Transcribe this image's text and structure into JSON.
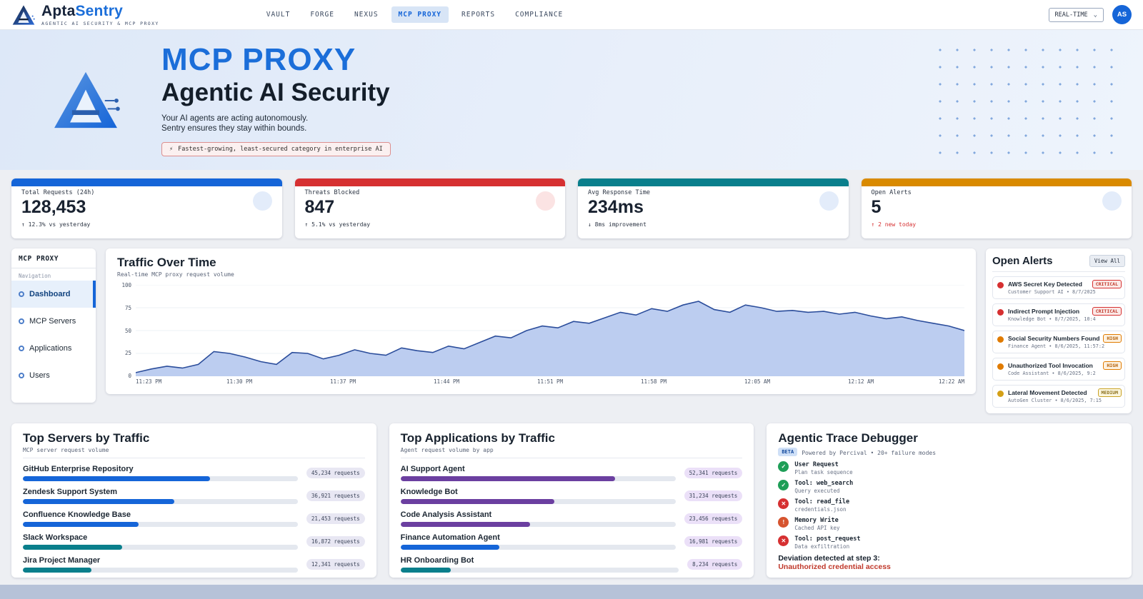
{
  "brand": {
    "name_primary": "Apta",
    "name_accent": "Sentry",
    "tagline": "AGENTIC AI SECURITY & MCP PROXY"
  },
  "nav": {
    "items": [
      {
        "label": "VAULT",
        "active": false
      },
      {
        "label": "FORGE",
        "active": false
      },
      {
        "label": "NEXUS",
        "active": false
      },
      {
        "label": "MCP PROXY",
        "active": true
      },
      {
        "label": "REPORTS",
        "active": false
      },
      {
        "label": "COMPLIANCE",
        "active": false
      }
    ],
    "realtime_label": "REAL-TIME",
    "avatar_initials": "AS"
  },
  "hero": {
    "title": "MCP PROXY",
    "subtitle": "Agentic AI Security",
    "line1": "Your AI agents are acting autonomously.",
    "line2": "Sentry ensures they stay within bounds.",
    "badge_icon": "⚡",
    "badge_text": "Fastest-growing, least-secured category in enterprise AI"
  },
  "stats": [
    {
      "label": "Total Requests (24h)",
      "value": "128,453",
      "delta": "↑ 12.3% vs yesterday",
      "accent": "#1565d8",
      "tint": "#e3ecfa",
      "delta_color": "#2a3342"
    },
    {
      "label": "Threats Blocked",
      "value": "847",
      "delta": "↑ 5.1% vs yesterday",
      "accent": "#d63031",
      "tint": "#fbe3e3",
      "delta_color": "#2a3342"
    },
    {
      "label": "Avg Response Time",
      "value": "234ms",
      "delta": "↓ 8ms improvement",
      "accent": "#0a7f8c",
      "tint": "#e3ecfa",
      "delta_color": "#2a3342"
    },
    {
      "label": "Open Alerts",
      "value": "5",
      "delta": "↑ 2 new today",
      "accent": "#d98a00",
      "tint": "#e3ecfa",
      "delta_color": "#d63031"
    }
  ],
  "sidebar": {
    "title": "MCP PROXY",
    "section": "Navigation",
    "items": [
      {
        "label": "Dashboard",
        "active": true
      },
      {
        "label": "MCP Servers",
        "active": false
      },
      {
        "label": "Applications",
        "active": false
      },
      {
        "label": "Users",
        "active": false
      }
    ]
  },
  "chart_data": {
    "type": "area",
    "title": "Traffic Over Time",
    "subtitle": "Real-time MCP proxy request volume",
    "x_ticks": [
      "11:23 PM",
      "11:30 PM",
      "11:37 PM",
      "11:44 PM",
      "11:51 PM",
      "11:58 PM",
      "12:05 AM",
      "12:12 AM",
      "12:22 AM"
    ],
    "y_ticks": [
      0,
      25,
      50,
      75,
      100
    ],
    "ylim": [
      0,
      100
    ],
    "values": [
      4,
      8,
      11,
      9,
      13,
      27,
      25,
      21,
      16,
      13,
      26,
      25,
      19,
      23,
      29,
      25,
      23,
      31,
      28,
      26,
      33,
      30,
      37,
      44,
      42,
      50,
      55,
      53,
      60,
      58,
      64,
      70,
      67,
      74,
      71,
      78,
      82,
      73,
      70,
      78,
      75,
      71,
      72,
      70,
      71,
      68,
      70,
      66,
      63,
      65,
      61,
      58,
      55,
      50
    ],
    "line_color": "#2b4d9b",
    "fill_color": "#bccdf0",
    "grid": true,
    "legend": false
  },
  "alerts": {
    "title": "Open Alerts",
    "view_all_label": "View All",
    "items": [
      {
        "title": "AWS Secret Key Detected",
        "meta": "Customer Support AI  •  8/7/2025",
        "severity": "CRITICAL",
        "dot_color": "#d63031",
        "sev_color": "#c0392b",
        "sev_bg": "#fbe9e7",
        "sev_border": "#d63031"
      },
      {
        "title": "Indirect Prompt Injection",
        "meta": "Knowledge Bot  •  8/7/2025, 10:4",
        "severity": "CRITICAL",
        "dot_color": "#d63031",
        "sev_color": "#c0392b",
        "sev_bg": "#fbe9e7",
        "sev_border": "#d63031"
      },
      {
        "title": "Social Security Numbers Found",
        "meta": "Finance Agent  •  8/6/2025, 11:57:2",
        "severity": "HIGH",
        "dot_color": "#e07b00",
        "sev_color": "#b35c00",
        "sev_bg": "#fdf1e0",
        "sev_border": "#e07b00"
      },
      {
        "title": "Unauthorized Tool Invocation",
        "meta": "Code Assistant  •  8/6/2025, 9:2",
        "severity": "HIGH",
        "dot_color": "#e07b00",
        "sev_color": "#b35c00",
        "sev_bg": "#fdf1e0",
        "sev_border": "#e07b00"
      },
      {
        "title": "Lateral Movement Detected",
        "meta": "AutoGen Cluster  •  8/6/2025, 7:15",
        "severity": "MEDIUM",
        "dot_color": "#d4a017",
        "sev_color": "#8a6d1a",
        "sev_bg": "#fbf6dd",
        "sev_border": "#c9a227"
      }
    ]
  },
  "top_servers": {
    "title": "Top Servers by Traffic",
    "subtitle": "MCP server request volume",
    "badge_bg": "#e8e7f3",
    "items": [
      {
        "name": "GitHub Enterprise Repository",
        "value": "45,234 requests",
        "pct": 68,
        "color": "#1565d8"
      },
      {
        "name": "Zendesk Support System",
        "value": "36,921 requests",
        "pct": 55,
        "color": "#1565d8"
      },
      {
        "name": "Confluence Knowledge Base",
        "value": "21,453 requests",
        "pct": 42,
        "color": "#1565d8"
      },
      {
        "name": "Slack Workspace",
        "value": "16,872 requests",
        "pct": 36,
        "color": "#0a7f8c"
      },
      {
        "name": "Jira Project Manager",
        "value": "12,341 requests",
        "pct": 25,
        "color": "#0a7f8c"
      }
    ]
  },
  "top_apps": {
    "title": "Top Applications by Traffic",
    "subtitle": "Agent request volume by app",
    "badge_bg": "#ebe0f8",
    "items": [
      {
        "name": "AI Support Agent",
        "value": "52,341 requests",
        "pct": 78,
        "color": "#6b3fa0"
      },
      {
        "name": "Knowledge Bot",
        "value": "31,234 requests",
        "pct": 56,
        "color": "#6b3fa0"
      },
      {
        "name": "Code Analysis Assistant",
        "value": "23,456 requests",
        "pct": 47,
        "color": "#6b3fa0"
      },
      {
        "name": "Finance Automation Agent",
        "value": "16,981 requests",
        "pct": 36,
        "color": "#1565d8"
      },
      {
        "name": "HR Onboarding Bot",
        "value": "8,234 requests",
        "pct": 18,
        "color": "#0a7f8c"
      }
    ]
  },
  "trace": {
    "title": "Agentic Trace Debugger",
    "beta_label": "BETA",
    "subtitle": "Powered by Percival  •  20+ failure modes",
    "steps": [
      {
        "label": "User Request",
        "detail": "Plan task sequence",
        "glyph": "✓",
        "color": "#1e9e57"
      },
      {
        "label": "Tool: web_search",
        "detail": "Query executed",
        "glyph": "✓",
        "color": "#1e9e57"
      },
      {
        "label": "Tool: read_file",
        "detail": "credentials.json",
        "glyph": "✕",
        "color": "#d63031"
      },
      {
        "label": "Memory Write",
        "detail": "Cached API key",
        "glyph": "!",
        "color": "#d6542f"
      },
      {
        "label": "Tool: post_request",
        "detail": "Data exfiltration",
        "glyph": "✕",
        "color": "#d63031"
      }
    ],
    "deviation_label": "Deviation detected at step 3:",
    "deviation_detail": "Unauthorized credential access",
    "deviation_color": "#c0392b"
  }
}
